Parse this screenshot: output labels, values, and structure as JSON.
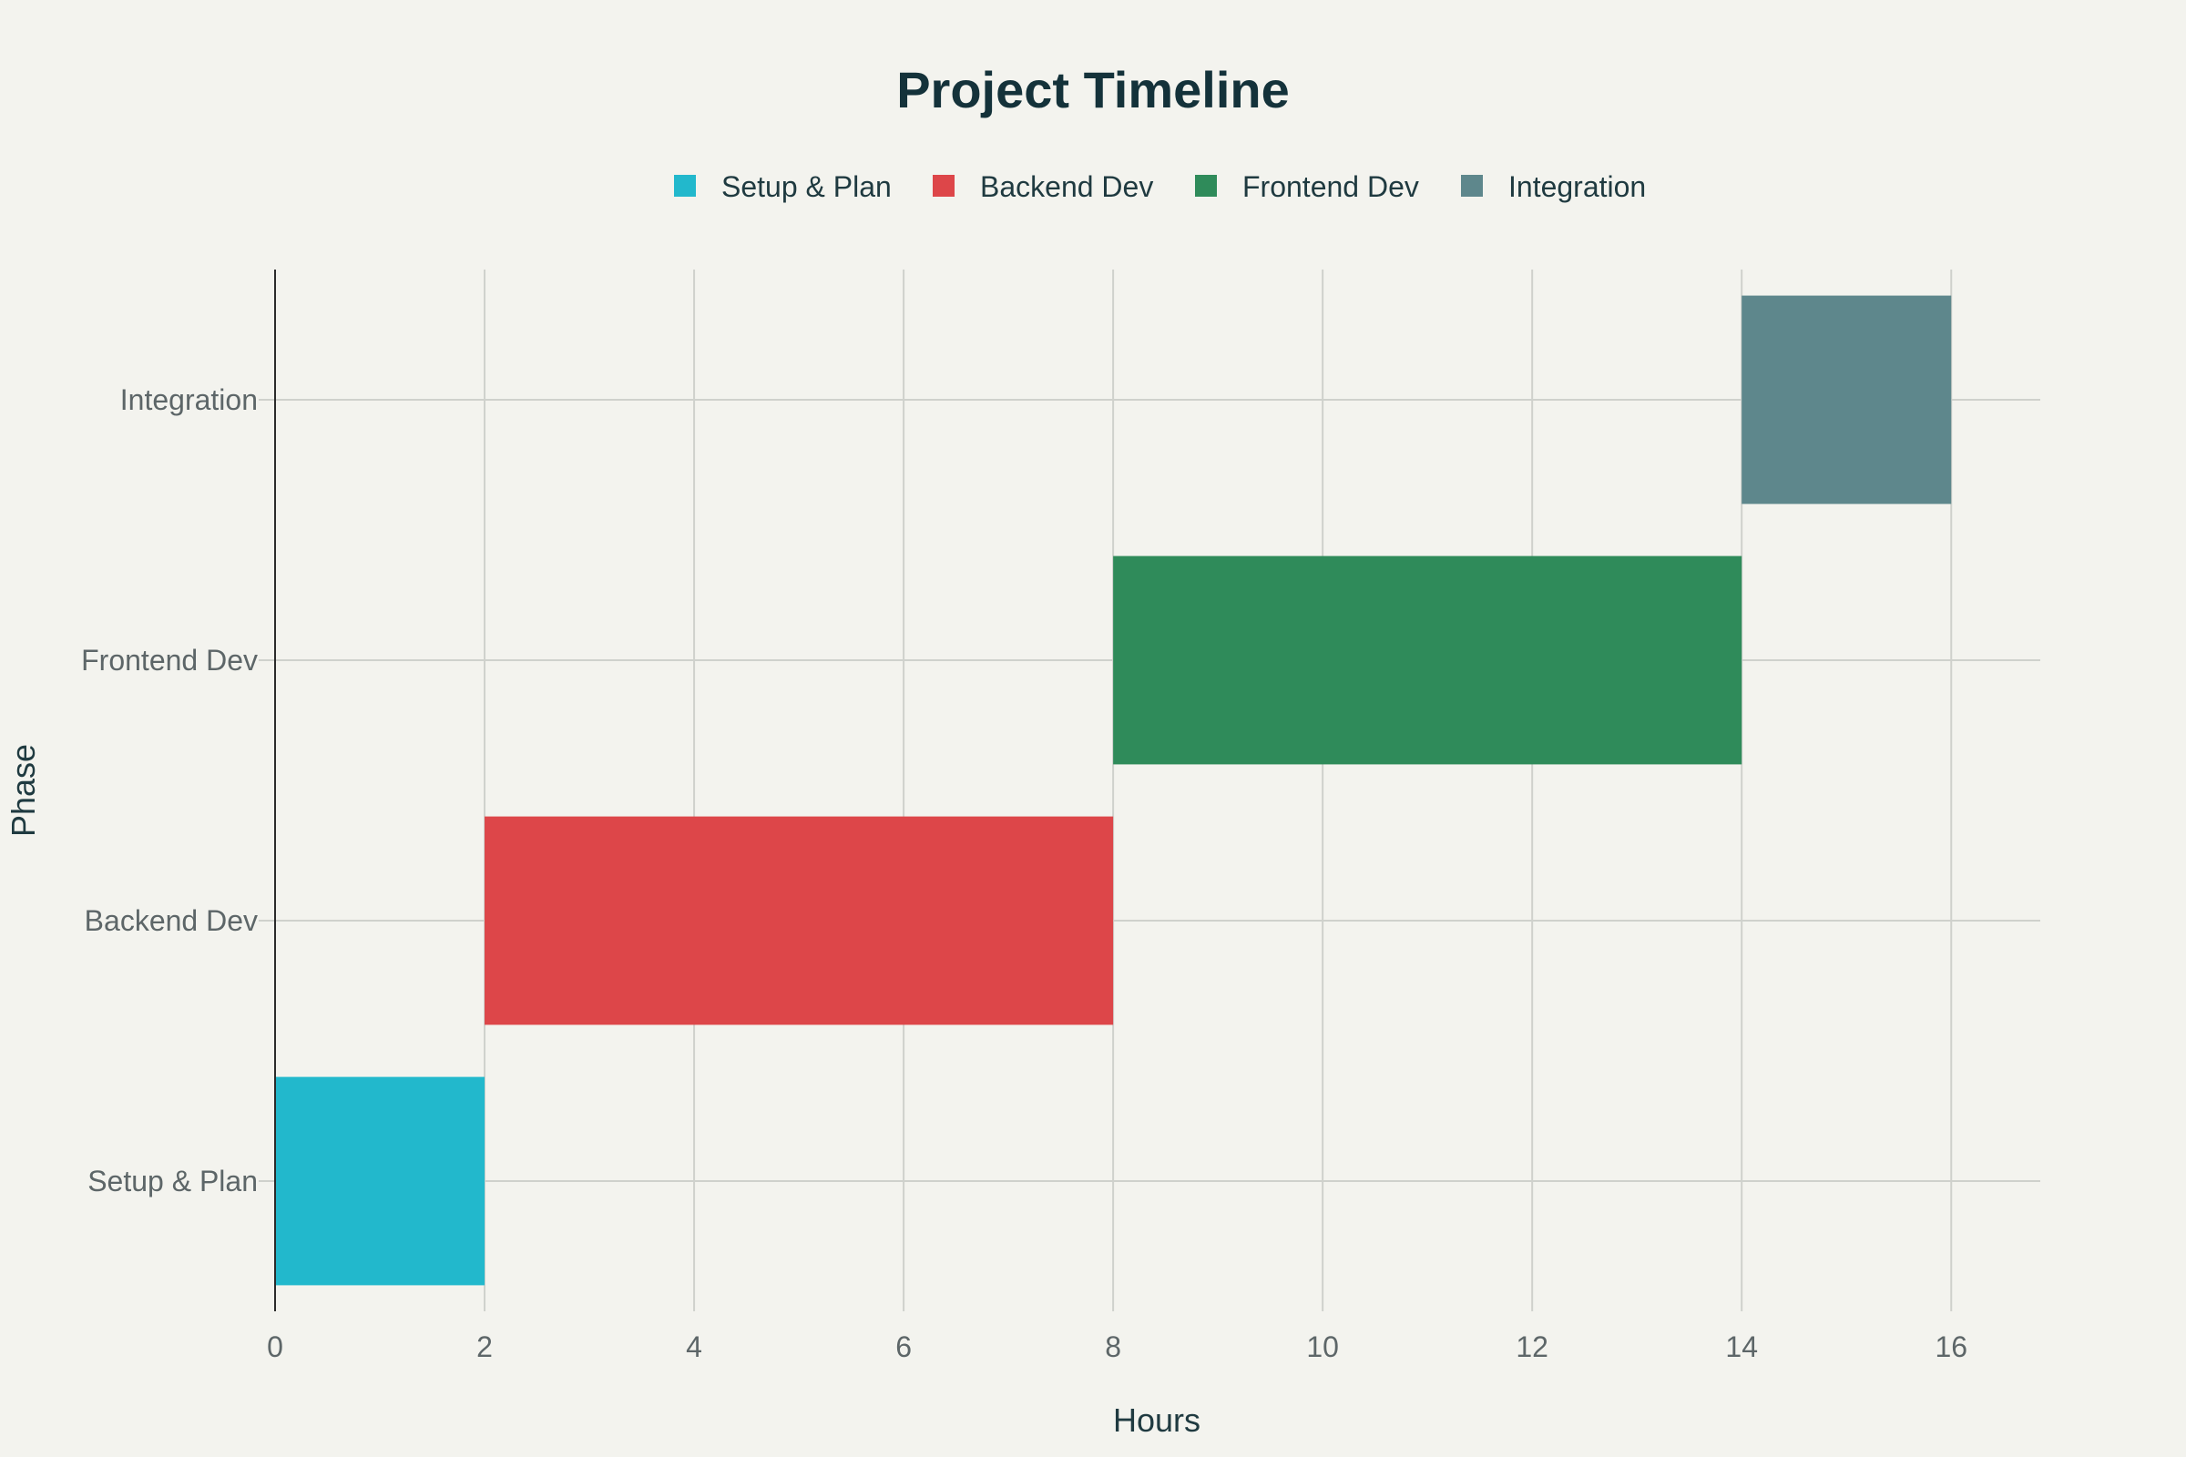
{
  "chart_data": {
    "type": "bar",
    "orientation": "horizontal",
    "title": "Project Timeline",
    "xlabel": "Hours",
    "ylabel": "Phase",
    "xlim": [
      0,
      16.85
    ],
    "xticks": [
      0,
      2,
      4,
      6,
      8,
      10,
      12,
      14,
      16
    ],
    "grid": true,
    "legend": {
      "placement": "top-center",
      "entries": [
        "Setup & Plan",
        "Backend Dev",
        "Frontend Dev",
        "Integration"
      ]
    },
    "categories": [
      "Setup & Plan",
      "Backend Dev",
      "Frontend Dev",
      "Integration"
    ],
    "series": [
      {
        "name": "Setup & Plan",
        "category": "Setup & Plan",
        "start": 0,
        "end": 2,
        "color": "#22b8cc"
      },
      {
        "name": "Backend Dev",
        "category": "Backend Dev",
        "start": 2,
        "end": 8,
        "color": "#dd4649"
      },
      {
        "name": "Frontend Dev",
        "category": "Frontend Dev",
        "start": 8,
        "end": 14,
        "color": "#2f8b5a"
      },
      {
        "name": "Integration",
        "category": "Integration",
        "start": 14,
        "end": 16,
        "color": "#5e878c"
      }
    ]
  }
}
